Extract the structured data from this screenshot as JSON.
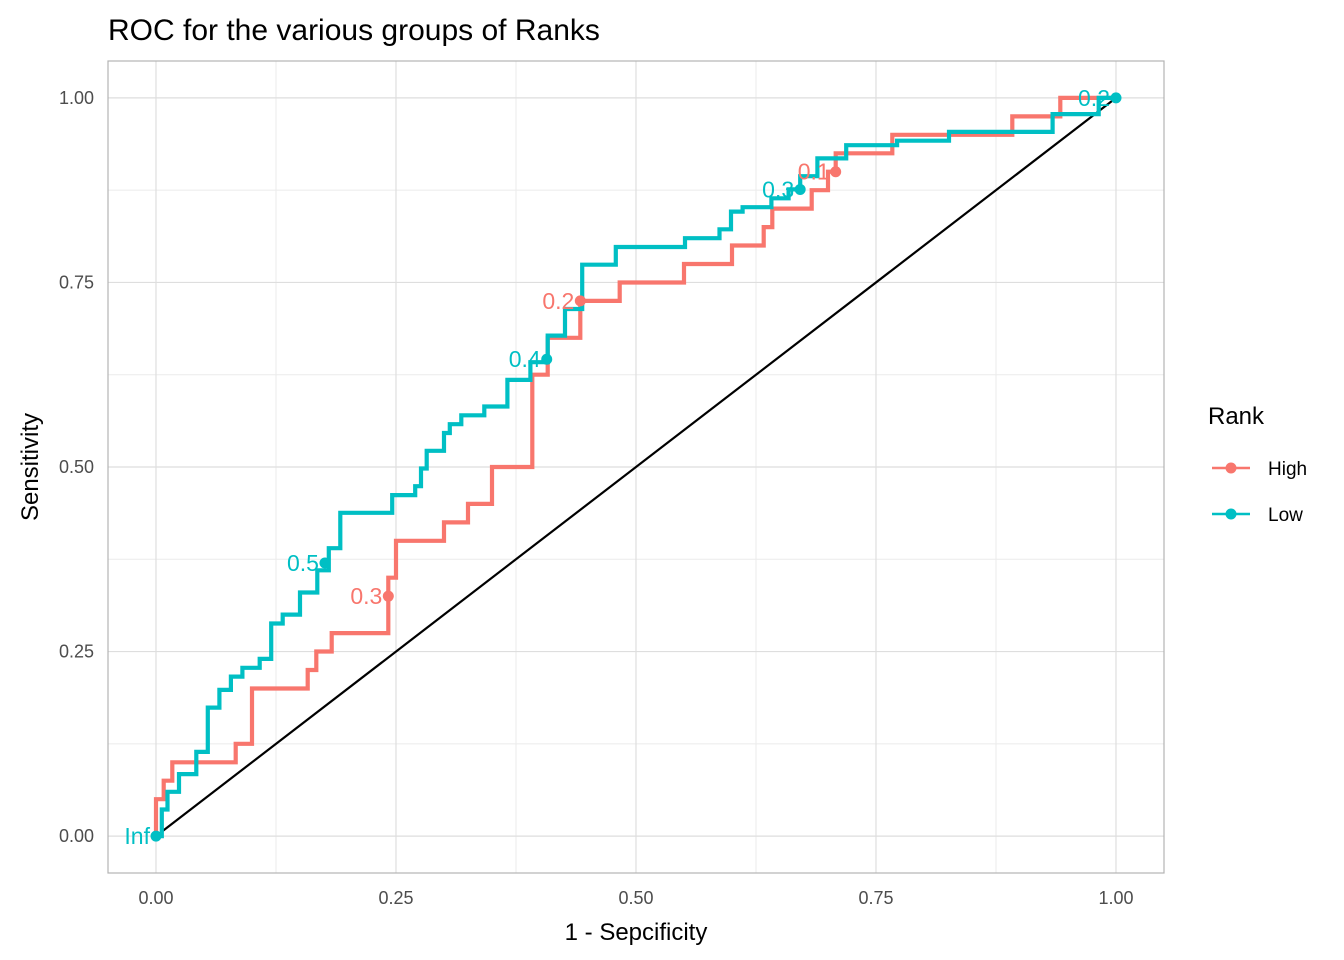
{
  "chart_data": {
    "type": "line",
    "title": "ROC for the various groups of Ranks",
    "xlabel": "1 - Sepcificity",
    "ylabel": "Sensitivity",
    "xlim": [
      -0.05,
      1.05
    ],
    "ylim": [
      -0.05,
      1.05
    ],
    "x_ticks": [
      0,
      0.25,
      0.5,
      0.75,
      1
    ],
    "x_tick_labels": [
      "0.00",
      "0.25",
      "0.50",
      "0.75",
      "1.00"
    ],
    "y_ticks": [
      0,
      0.25,
      0.5,
      0.75,
      1
    ],
    "y_tick_labels": [
      "0.00",
      "0.25",
      "0.50",
      "0.75",
      "1.00"
    ],
    "grid": true,
    "legend": {
      "title": "Rank",
      "placement": "right"
    },
    "reference_line": {
      "x": [
        0,
        1
      ],
      "y": [
        0,
        1
      ],
      "color": "#000000"
    },
    "series": [
      {
        "name": "High",
        "color": "#F8766D",
        "x": [
          0,
          0,
          0.008,
          0.008,
          0.017,
          0.017,
          0.025,
          0.025,
          0.083,
          0.083,
          0.1,
          0.1,
          0.158,
          0.158,
          0.167,
          0.167,
          0.183,
          0.183,
          0.242,
          0.242,
          0.25,
          0.25,
          0.3,
          0.3,
          0.325,
          0.325,
          0.35,
          0.35,
          0.392,
          0.392,
          0.408,
          0.408,
          0.442,
          0.442,
          0.458,
          0.458,
          0.483,
          0.483,
          0.55,
          0.55,
          0.6,
          0.6,
          0.633,
          0.633,
          0.642,
          0.642,
          0.683,
          0.683,
          0.7,
          0.7,
          0.708,
          0.708,
          0.767,
          0.767,
          0.892,
          0.892,
          0.942,
          0.942,
          1
        ],
        "y": [
          0,
          0.05,
          0.05,
          0.075,
          0.075,
          0.1,
          0.1,
          0.1,
          0.1,
          0.125,
          0.125,
          0.2,
          0.2,
          0.225,
          0.225,
          0.25,
          0.25,
          0.275,
          0.275,
          0.35,
          0.35,
          0.4,
          0.4,
          0.425,
          0.425,
          0.45,
          0.45,
          0.5,
          0.5,
          0.625,
          0.625,
          0.675,
          0.675,
          0.725,
          0.725,
          0.725,
          0.725,
          0.75,
          0.75,
          0.775,
          0.775,
          0.8,
          0.8,
          0.825,
          0.825,
          0.85,
          0.85,
          0.875,
          0.875,
          0.9,
          0.9,
          0.925,
          0.925,
          0.95,
          0.95,
          0.975,
          0.975,
          1.0,
          1.0
        ],
        "thresholds": [
          {
            "label": "0.3",
            "x": 0.242,
            "y": 0.325
          },
          {
            "label": "0.2",
            "x": 0.442,
            "y": 0.725
          },
          {
            "label": "0.1",
            "x": 0.708,
            "y": 0.9
          }
        ]
      },
      {
        "name": "Low",
        "color": "#00BFC4",
        "x": [
          0,
          0.006,
          0.006,
          0.012,
          0.012,
          0.024,
          0.024,
          0.042,
          0.042,
          0.054,
          0.054,
          0.066,
          0.066,
          0.078,
          0.078,
          0.09,
          0.09,
          0.108,
          0.108,
          0.12,
          0.12,
          0.132,
          0.132,
          0.15,
          0.15,
          0.168,
          0.168,
          0.18,
          0.18,
          0.192,
          0.192,
          0.246,
          0.246,
          0.27,
          0.27,
          0.276,
          0.276,
          0.282,
          0.282,
          0.3,
          0.3,
          0.306,
          0.306,
          0.318,
          0.318,
          0.342,
          0.342,
          0.366,
          0.366,
          0.39,
          0.39,
          0.408,
          0.408,
          0.426,
          0.426,
          0.444,
          0.444,
          0.479,
          0.479,
          0.551,
          0.551,
          0.587,
          0.587,
          0.599,
          0.599,
          0.611,
          0.611,
          0.641,
          0.641,
          0.659,
          0.659,
          0.671,
          0.671,
          0.689,
          0.689,
          0.719,
          0.719,
          0.772,
          0.772,
          0.826,
          0.826,
          0.934,
          0.934,
          0.982,
          0.982,
          1
        ],
        "y": [
          0,
          0,
          0.036,
          0.036,
          0.06,
          0.06,
          0.084,
          0.084,
          0.114,
          0.114,
          0.174,
          0.174,
          0.198,
          0.198,
          0.216,
          0.216,
          0.228,
          0.228,
          0.24,
          0.24,
          0.288,
          0.288,
          0.3,
          0.3,
          0.33,
          0.33,
          0.36,
          0.36,
          0.39,
          0.39,
          0.438,
          0.438,
          0.462,
          0.462,
          0.474,
          0.474,
          0.498,
          0.498,
          0.522,
          0.522,
          0.546,
          0.546,
          0.558,
          0.558,
          0.57,
          0.57,
          0.582,
          0.582,
          0.618,
          0.618,
          0.642,
          0.642,
          0.678,
          0.678,
          0.714,
          0.714,
          0.774,
          0.774,
          0.798,
          0.798,
          0.81,
          0.81,
          0.822,
          0.822,
          0.846,
          0.846,
          0.852,
          0.852,
          0.864,
          0.864,
          0.876,
          0.876,
          0.894,
          0.894,
          0.918,
          0.918,
          0.936,
          0.936,
          0.942,
          0.942,
          0.954,
          0.954,
          0.978,
          0.978,
          1.0,
          1.0
        ],
        "thresholds": [
          {
            "label": "Inf",
            "x": 0,
            "y": 0
          },
          {
            "label": "0.5",
            "x": 0.176,
            "y": 0.37
          },
          {
            "label": "0.4",
            "x": 0.407,
            "y": 0.646
          },
          {
            "label": "0.3",
            "x": 0.671,
            "y": 0.876
          },
          {
            "label": "0.2",
            "x": 1.0,
            "y": 1.0
          }
        ]
      }
    ]
  }
}
